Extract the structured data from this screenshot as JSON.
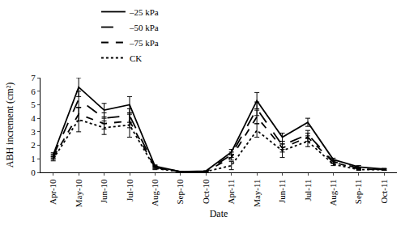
{
  "chart_data": {
    "type": "line",
    "x_label": "Date",
    "y_label": "ABH increment (cm²)",
    "categories": [
      "Apr-10",
      "May-10",
      "Jun-10",
      "Jul-10",
      "Aug-10",
      "Sep-10",
      "Oct-10",
      "Apr-11",
      "May-11",
      "Jun-11",
      "Jul-11",
      "Aug-11",
      "Sep-11",
      "Oct-11"
    ],
    "series": [
      {
        "name": "–25 kPa",
        "color": "#000000",
        "line_style": "solid",
        "marker": "none",
        "values": [
          1.3,
          6.3,
          4.6,
          5.0,
          0.45,
          0.05,
          0.1,
          1.5,
          5.3,
          2.6,
          3.7,
          0.95,
          0.4,
          0.25
        ],
        "error": [
          0.15,
          0.7,
          0.5,
          0.6,
          0.1,
          0.02,
          0.02,
          0.2,
          0.6,
          0.3,
          0.3,
          0.1,
          0.1,
          0.05
        ]
      },
      {
        "name": "–50 kPa",
        "color": "#000000",
        "line_style": "longdash",
        "marker": "none",
        "values": [
          1.2,
          5.4,
          4.0,
          4.2,
          0.4,
          0.05,
          0.08,
          1.3,
          4.7,
          2.0,
          2.8,
          0.8,
          0.3,
          0.2
        ],
        "error": [
          0.15,
          0.6,
          0.4,
          0.5,
          0.1,
          0.02,
          0.02,
          0.2,
          0.5,
          0.3,
          0.3,
          0.1,
          0.1,
          0.05
        ]
      },
      {
        "name": "–75 kPa",
        "color": "#000000",
        "line_style": "dash",
        "marker": "none",
        "values": [
          1.1,
          4.3,
          3.6,
          3.8,
          0.35,
          0.04,
          0.07,
          1.1,
          4.1,
          1.8,
          2.6,
          0.75,
          0.25,
          0.2
        ],
        "error": [
          0.15,
          0.5,
          0.4,
          0.5,
          0.1,
          0.02,
          0.02,
          0.2,
          0.5,
          0.3,
          0.3,
          0.1,
          0.05,
          0.05
        ]
      },
      {
        "name": "CK",
        "color": "#000000",
        "line_style": "dot",
        "marker": "none",
        "values": [
          1.0,
          3.9,
          3.3,
          3.5,
          0.3,
          0.03,
          0.06,
          0.5,
          3.1,
          1.6,
          2.3,
          0.6,
          0.2,
          0.2
        ],
        "error": [
          0.15,
          0.9,
          0.5,
          0.9,
          0.1,
          0.02,
          0.02,
          0.3,
          0.5,
          0.5,
          0.4,
          0.1,
          0.05,
          0.05
        ]
      }
    ],
    "ylim": [
      0,
      7
    ],
    "yticks": [
      0,
      1,
      2,
      3,
      4,
      5,
      6,
      7
    ],
    "grid": false,
    "legend": "top"
  }
}
